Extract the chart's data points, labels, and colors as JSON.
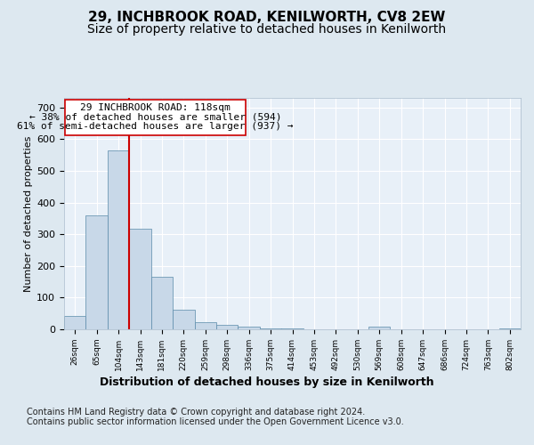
{
  "title": "29, INCHBROOK ROAD, KENILWORTH, CV8 2EW",
  "subtitle": "Size of property relative to detached houses in Kenilworth",
  "xlabel": "Distribution of detached houses by size in Kenilworth",
  "ylabel": "Number of detached properties",
  "bin_labels": [
    "26sqm",
    "65sqm",
    "104sqm",
    "143sqm",
    "181sqm",
    "220sqm",
    "259sqm",
    "298sqm",
    "336sqm",
    "375sqm",
    "414sqm",
    "453sqm",
    "492sqm",
    "530sqm",
    "569sqm",
    "608sqm",
    "647sqm",
    "686sqm",
    "724sqm",
    "763sqm",
    "802sqm"
  ],
  "bar_values": [
    43,
    358,
    565,
    316,
    165,
    62,
    23,
    13,
    8,
    4,
    4,
    0,
    0,
    0,
    8,
    0,
    0,
    0,
    0,
    0,
    4
  ],
  "bar_color": "#c8d8e8",
  "bar_edgecolor": "#5a8aaa",
  "vline_color": "#cc0000",
  "annotation_line1": "29 INCHBROOK ROAD: 118sqm",
  "annotation_line2": "← 38% of detached houses are smaller (594)",
  "annotation_line3": "61% of semi-detached houses are larger (937) →",
  "annotation_box_color": "#ffffff",
  "annotation_box_edgecolor": "#cc0000",
  "ylim": [
    0,
    730
  ],
  "yticks": [
    0,
    100,
    200,
    300,
    400,
    500,
    600,
    700
  ],
  "background_color": "#dde8f0",
  "plot_background": "#e8f0f8",
  "footer": "Contains HM Land Registry data © Crown copyright and database right 2024.\nContains public sector information licensed under the Open Government Licence v3.0.",
  "title_fontsize": 11,
  "subtitle_fontsize": 10,
  "xlabel_fontsize": 9,
  "ylabel_fontsize": 8,
  "annotation_fontsize": 8,
  "footer_fontsize": 7
}
